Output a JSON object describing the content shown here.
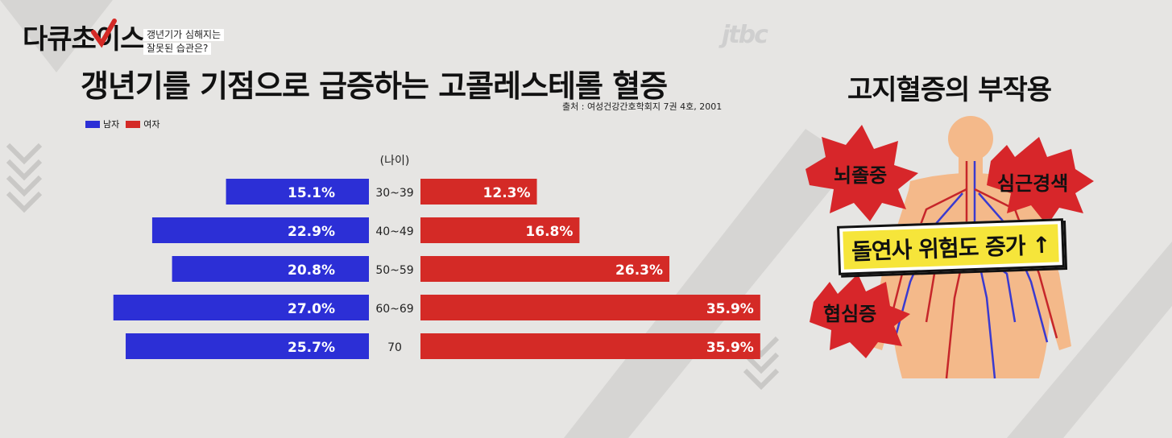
{
  "header": {
    "logo": "다큐초이스",
    "subtitle_line1": "갱년기가 심해지는",
    "subtitle_line2": "잘못된 습관은?",
    "broadcaster": "jtbc"
  },
  "colors": {
    "male": "#2c2fd6",
    "female": "#d42a26",
    "banner_yellow": "#f6e53a",
    "burst_red": "#d7262a"
  },
  "chart_data": {
    "type": "bar",
    "title": "갱년기를 기점으로 급증하는 고콜레스테롤 혈증",
    "source": "출처 : 여성건강간호학회지 7권 4호, 2001",
    "age_axis_label": "(나이)",
    "categories": [
      "30~39",
      "40~49",
      "50~59",
      "60~69",
      "70"
    ],
    "series": [
      {
        "name": "남자",
        "values": [
          15.1,
          22.9,
          20.8,
          27.0,
          25.7
        ],
        "labels": [
          "15.1%",
          "22.9%",
          "20.8%",
          "27.0%",
          "25.7%"
        ]
      },
      {
        "name": "여자",
        "values": [
          12.3,
          16.8,
          26.3,
          35.9,
          35.9
        ],
        "labels": [
          "12.3%",
          "16.8%",
          "26.3%",
          "35.9%",
          "35.9%"
        ]
      }
    ],
    "unit": "%",
    "legend_position": "top-left",
    "grid": false
  },
  "side_panel": {
    "title": "고지혈증의 부작용",
    "effects": [
      "뇌졸중",
      "심근경색",
      "협심증"
    ],
    "banner": "돌연사 위험도 증가",
    "banner_arrow": "↑"
  }
}
